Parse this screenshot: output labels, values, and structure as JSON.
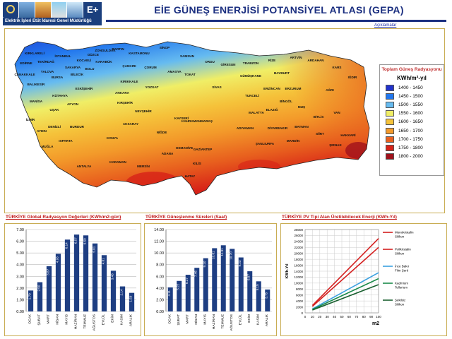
{
  "header": {
    "org_name": "Elektrik İşleri Etüt İdaresi Genel Müdürlüğü",
    "title": "EİE GÜNEŞ ENERJİSİ POTANSİYEL ATLASI (GEPA)",
    "link_label": "Açıklamalar"
  },
  "legend": {
    "title": "Toplam Güneş Radyasyonu",
    "unit": "KWh/m²-yıl",
    "items": [
      {
        "label": "1400 - 1450",
        "color": "#2233cc"
      },
      {
        "label": "1450 - 1500",
        "color": "#2277ee"
      },
      {
        "label": "1500 - 1550",
        "color": "#66bbf0"
      },
      {
        "label": "1550 - 1600",
        "color": "#f0ee66"
      },
      {
        "label": "1600 - 1650",
        "color": "#f5c23a"
      },
      {
        "label": "1650 - 1700",
        "color": "#f39a2a"
      },
      {
        "label": "1700 - 1750",
        "color": "#e8601e"
      },
      {
        "label": "1750 - 1800",
        "color": "#d72218"
      },
      {
        "label": "1800 - 2000",
        "color": "#a0121c"
      }
    ]
  },
  "map_labels": [
    "KIRKLARELİ",
    "EDİRNE",
    "TEKİRDAĞ",
    "İSTANBUL",
    "KOCAELİ",
    "SAKARYA",
    "DÜZCE",
    "ZONGULDAK",
    "BARTIN",
    "KASTAMONU",
    "SİNOP",
    "SAMSUN",
    "ORDU",
    "GİRESUN",
    "TRABZON",
    "RİZE",
    "ARTVİN",
    "ARDAHAN",
    "KARS",
    "IĞDIR",
    "ERZURUM",
    "AĞRI",
    "VAN",
    "HAKKARİ",
    "ŞIRNAK",
    "SİİRT",
    "BİTLİS",
    "MUŞ",
    "BATMAN",
    "MARDİN",
    "DİYARBAKIR",
    "ŞANLIURFA",
    "ADIYAMAN",
    "MALATYA",
    "ELAZIĞ",
    "TUNCELİ",
    "BİNGÖL",
    "ERZİNCAN",
    "BAYBURT",
    "GÜMÜŞHANE",
    "SİVAS",
    "TOKAT",
    "AMASYA",
    "ÇORUM",
    "YOZGAT",
    "KIRIKKALE",
    "ANKARA",
    "ÇANKIRI",
    "KARABÜK",
    "BOLU",
    "BİLECİK",
    "ESKİŞEHİR",
    "BURSA",
    "BALIKESİR",
    "ÇANAKKALE",
    "YALOVA",
    "KÜTAHYA",
    "AFYON",
    "UŞAK",
    "MANİSA",
    "İZMİR",
    "AYDIN",
    "DENİZLİ",
    "MUĞLA",
    "BURDUR",
    "ISPARTA",
    "ANTALYA",
    "KONYA",
    "KARAMAN",
    "MERSİN",
    "ADANA",
    "OSMANİYE",
    "HATAY",
    "KİLİS",
    "GAZİANTEP",
    "KAHRAMANMARAŞ",
    "KAYSERİ",
    "NEVŞEHİR",
    "KIRŞEHİR",
    "AKSARAY",
    "NİĞDE"
  ],
  "charts": {
    "radiation_title": "TÜRKİYE Global Radyasyon Değerleri (KWh/m2-gün)",
    "sunshine_title": "TÜRKİYE Güneşlenme Süreleri (Saat)",
    "pv_title": "TÜRKİYE PV Tipi Alan Üretilebilecek Enerji (KWh-Yıl)"
  },
  "chart_data": [
    {
      "type": "bar",
      "title": "TÜRKİYE Global Radyasyon Değerleri (KWh/m2-gün)",
      "categories": [
        "OCAK",
        "ŞUBAT",
        "MART",
        "NİSAN",
        "MAYIS",
        "HAZİRAN",
        "TEMMUZ",
        "AĞUSTOS",
        "EYLÜL",
        "EKİM",
        "KASIM",
        "ARALIK"
      ],
      "values": [
        1.79,
        2.5,
        3.87,
        4.93,
        6.14,
        6.57,
        6.5,
        5.81,
        4.81,
        3.48,
        2.14,
        1.59
      ],
      "value_labels": [
        "1.79",
        "2.50",
        "3.87",
        "4.93",
        "6.14",
        "6.57",
        "6.50",
        "5.81",
        "4.81",
        "3.48",
        "2.14",
        "1.59"
      ],
      "ylim": [
        0,
        7
      ],
      "yticks": [
        "0.00",
        "1.00",
        "2.00",
        "3.00",
        "4.00",
        "5.00",
        "6.00",
        "7.00"
      ],
      "grid": true
    },
    {
      "type": "bar",
      "title": "TÜRKİYE Güneşlenme Süreleri (Saat)",
      "categories": [
        "OCAK",
        "ŞUBAT",
        "MART",
        "NİSAN",
        "MAYIS",
        "HAZİRAN",
        "TEMMUZ",
        "AĞUSTOS",
        "EYLÜL",
        "EKİM",
        "KASIM",
        "ARALIK"
      ],
      "values": [
        4.11,
        5.22,
        6.27,
        7.46,
        9.1,
        10.81,
        11.31,
        10.7,
        9.23,
        6.87,
        5.15,
        3.75
      ],
      "value_labels": [
        "4.11",
        "5.22",
        "6.27",
        "7.46",
        "9.10",
        "10.81",
        "11.31",
        "10.70",
        "9.23",
        "6.87",
        "5.15",
        "3.75"
      ],
      "ylim": [
        0,
        14
      ],
      "yticks": [
        "0.00",
        "2.00",
        "4.00",
        "6.00",
        "8.00",
        "10.00",
        "12.00",
        "14.00"
      ],
      "grid": true
    },
    {
      "type": "line",
      "title": "TÜRKİYE PV Tipi Alan Üretilebilecek Enerji (KWh-Yıl)",
      "xlabel": "m2",
      "ylabel": "KWh-Yıl",
      "x": [
        10,
        100
      ],
      "xticks": [
        "0",
        "10",
        "20",
        "30",
        "40",
        "50",
        "60",
        "70",
        "80",
        "90",
        "100"
      ],
      "ylim": [
        0,
        28000
      ],
      "yticks": [
        "0",
        "2000",
        "4000",
        "6000",
        "8000",
        "10000",
        "12000",
        "14000",
        "16000",
        "18000",
        "20000",
        "22000",
        "24000",
        "26000",
        "28000"
      ],
      "series": [
        {
          "name": "Monokristalin Silikon",
          "color": "#d42020",
          "values": [
            2500,
            25000
          ]
        },
        {
          "name": "Polikristalin Silikon",
          "color": "#d42020",
          "values": [
            2200,
            22000
          ]
        },
        {
          "name": "İnce Bakır Film Şerit",
          "color": "#3aa0e0",
          "values": [
            1350,
            13500
          ]
        },
        {
          "name": "Kadmium Tellerium",
          "color": "#1a8a4a",
          "values": [
            1150,
            11500
          ]
        },
        {
          "name": "Şekilsiz Silikon",
          "color": "#1a6030",
          "values": [
            950,
            9500
          ]
        }
      ],
      "grid": true
    }
  ]
}
